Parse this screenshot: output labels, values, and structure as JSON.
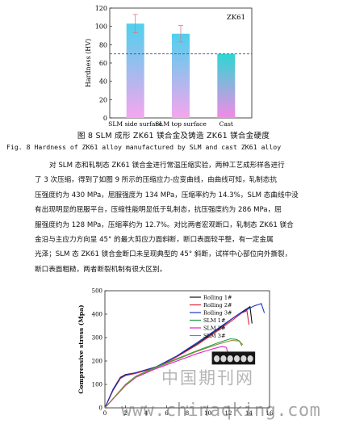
{
  "figure8": {
    "chart_data": {
      "type": "bar",
      "legend_label": "ZK61",
      "ylabel": "Hardness (HV)",
      "categories": [
        "SLM side surface",
        "SLM top surface",
        "Cast"
      ],
      "values": [
        103,
        92,
        70
      ],
      "error": [
        10,
        9,
        0
      ],
      "reference_line": 70,
      "ylim": [
        0,
        120
      ],
      "yticks": [
        0,
        20,
        40,
        60,
        80,
        100,
        120
      ],
      "colors": {
        "slm_top": "#4fd0ee",
        "slm_bottom": "#f6a6ee",
        "cast_top": "#2dd7d3",
        "cast_bottom": "#f48ae6",
        "error": "#e07a7a",
        "ref": "#3355aa"
      }
    },
    "caption_cn": "图 8 SLM 成形 ZK61 镁合金及铸造 ZK61 镁合金硬度",
    "caption_en": "Fig. 8 Hardness of ZK61 alloy manufactured by SLM and cast ZK61 alloy"
  },
  "paragraph": {
    "lines": [
      "对 SLM 态和轧制态 ZK61 镁合金进行常温压缩实验，两种工艺成形样各进行",
      "了 3 次压缩，得到了如图 9 所示的压缩应力-应变曲线，由曲线可知，轧制态抗",
      "压强度约为 430 MPa，屈服强度为 134 MPa，压缩率约为 14.3%，SLM 态曲线中没",
      "有出现明显的屈服平台，压缩性能明显低于轧制态，抗压强度约为 286 MPa，屈",
      "服强度约为 128 MPa，压缩率约为 12.7%。对比两者宏观断口，轧制态 ZK61 镁合",
      "金沿与主应力方向呈 45° 的最大剪应力面斜断，断口表面较平整，有一定金属",
      "光泽；SLM 态 ZK61 镁合金断口未呈现典型的 45° 斜断，试样中心部位向外撕裂，",
      "断口表面粗糙，两者断裂机制有很大区别。"
    ]
  },
  "figure9": {
    "chart_data": {
      "type": "line",
      "ylabel": "Compressive stress (Mpa)",
      "xlim": [
        0,
        16
      ],
      "ylim": [
        0,
        500
      ],
      "xticks": [
        0,
        2,
        4,
        6,
        8,
        10,
        12,
        14,
        16
      ],
      "yticks": [
        0,
        100,
        200,
        300,
        400,
        500
      ],
      "series": [
        {
          "name": "Rolling 1#",
          "color": "#111111",
          "x": [
            0,
            0.8,
            1.5,
            2,
            3,
            5,
            7,
            9,
            11,
            12.5,
            13.5,
            14.1,
            14.3
          ],
          "y": [
            0,
            80,
            130,
            142,
            150,
            175,
            220,
            275,
            335,
            385,
            415,
            432,
            360
          ]
        },
        {
          "name": "Rolling 2#",
          "color": "#e0223a",
          "x": [
            0,
            0.8,
            1.5,
            2,
            3,
            5,
            7,
            9,
            11,
            12.5,
            13.3,
            13.8,
            14.0
          ],
          "y": [
            0,
            75,
            125,
            138,
            147,
            172,
            218,
            270,
            330,
            378,
            405,
            415,
            355
          ]
        },
        {
          "name": "Rolling 3#",
          "color": "#2233cc",
          "x": [
            0,
            0.8,
            1.5,
            2,
            3,
            5,
            7,
            9,
            11,
            13,
            14.5,
            15.2,
            15.5
          ],
          "y": [
            0,
            78,
            128,
            140,
            150,
            176,
            222,
            280,
            340,
            400,
            435,
            445,
            405
          ]
        },
        {
          "name": "SLM 1#",
          "color": "#1e9e4a",
          "x": [
            0,
            1,
            2,
            3,
            5,
            7,
            9,
            11,
            12.2,
            12.8,
            13.1,
            13.3
          ],
          "y": [
            0,
            50,
            100,
            135,
            175,
            210,
            245,
            278,
            295,
            292,
            285,
            265
          ]
        },
        {
          "name": "SLM 2#",
          "color": "#e020d0",
          "x": [
            0,
            1,
            2,
            3,
            5,
            7,
            9,
            10.5,
            11.4,
            11.8,
            12.0
          ],
          "y": [
            0,
            48,
            95,
            130,
            168,
            200,
            232,
            252,
            262,
            258,
            225
          ]
        },
        {
          "name": "SLM 3#",
          "color": "#8a8a2a",
          "x": [
            0,
            1,
            2,
            3,
            5,
            7,
            9,
            11,
            12.3,
            13.0,
            13.4
          ],
          "y": [
            0,
            50,
            98,
            133,
            172,
            207,
            242,
            272,
            288,
            286,
            270
          ]
        }
      ]
    }
  },
  "watermarks": {
    "cn": "中国期刊网",
    "url": "www.chinaqking.com"
  }
}
